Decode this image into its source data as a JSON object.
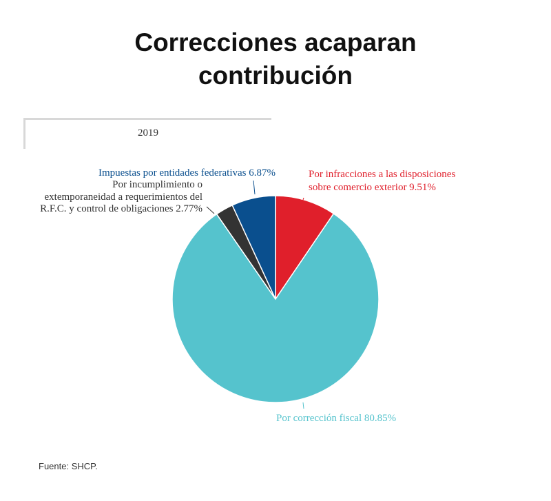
{
  "title_lines": [
    "Correcciones acaparan",
    "contribución"
  ],
  "tab": {
    "label": "2019"
  },
  "source": "Fuente: SHCP.",
  "colors": {
    "infracciones": "#e01f2b",
    "correccion": "#55c3cd",
    "incumplimiento": "#333333",
    "entidades": "#0a4f8e"
  },
  "chart_data": {
    "type": "pie",
    "title": "Correcciones acaparan contribución",
    "subtitle": "2019",
    "slices": [
      {
        "label_lines": [
          "Por infracciones a las disposiciones",
          "sobre comercio exterior 9.51%"
        ],
        "value": 9.51,
        "color": "#e01f2b"
      },
      {
        "label_lines": [
          "Por corrección fiscal 80.85%"
        ],
        "value": 80.85,
        "color": "#55c3cd"
      },
      {
        "label_lines": [
          "Por incumplimiento o",
          "extemporaneidad a requerimientos del",
          "R.F.C. y control de obligaciones 2.77%"
        ],
        "value": 2.77,
        "color": "#333333"
      },
      {
        "label_lines": [
          "Impuestas por entidades federativas 6.87%"
        ],
        "value": 6.87,
        "color": "#0a4f8e"
      }
    ]
  }
}
